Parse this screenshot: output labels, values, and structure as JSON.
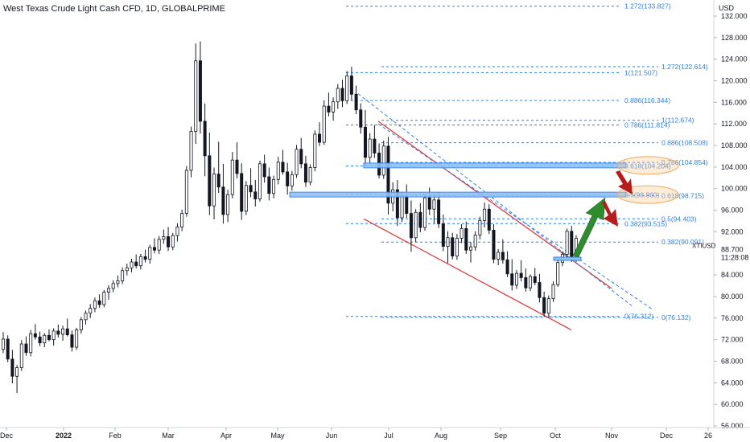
{
  "chart_data": {
    "type": "candlestick",
    "title": "West Texas Crude Light Cash CFD, 1D, GLOBALPRIME",
    "currency": "USD",
    "symbol": "XTIUSD",
    "last_price": "88.700",
    "countdown": "11:28:08",
    "y_axis": {
      "range": [
        56,
        134
      ],
      "ticks": [
        "132.000",
        "128.000",
        "124.000",
        "120.000",
        "116.000",
        "112.000",
        "108.000",
        "104.000",
        "100.000",
        "96.000",
        "92.000",
        "84.000",
        "80.000",
        "76.000",
        "72.000",
        "68.000",
        "64.000",
        "60.000",
        "56.000"
      ]
    },
    "x_axis": {
      "labels": [
        "Dec",
        "2022",
        "Feb",
        "Mar",
        "Apr",
        "May",
        "Jun",
        "Jul",
        "Aug",
        "Sep",
        "Oct",
        "Nov",
        "Dec",
        "26"
      ]
    },
    "fib_set_1": {
      "levels": [
        {
          "label": "1.272(133.827)",
          "value": 133.827
        },
        {
          "label": "1(121.507)",
          "value": 121.507
        },
        {
          "label": "0.886(116.344)",
          "value": 116.344
        },
        {
          "label": "0.786(111.814)",
          "value": 111.814
        },
        {
          "label": "0.618(104.204)",
          "value": 104.204
        },
        {
          "label": "0.5(98.860)",
          "value": 98.86
        },
        {
          "label": "0.382(93.515)",
          "value": 93.515
        },
        {
          "label": "0(76.312)",
          "value": 76.312
        }
      ]
    },
    "fib_set_2": {
      "levels": [
        {
          "label": "1.272(122.614)",
          "value": 122.614
        },
        {
          "label": "1(112.674)",
          "value": 112.674
        },
        {
          "label": "0.886(108.508)",
          "value": 108.508
        },
        {
          "label": "0.786(104.854)",
          "value": 104.854
        },
        {
          "label": "0.618(98.715)",
          "value": 98.715
        },
        {
          "label": "0.5(94.403)",
          "value": 94.403
        },
        {
          "label": "0.382(90.091)",
          "value": 90.091
        },
        {
          "label": "0(76.132)",
          "value": 76.132
        }
      ]
    },
    "resistance_zones": [
      104.3,
      98.9
    ],
    "ohlc": [
      [
        70.2,
        73.4,
        69.5,
        72.1
      ],
      [
        72.1,
        72.8,
        67.8,
        68.4
      ],
      [
        68.4,
        70.1,
        63.9,
        65.2
      ],
      [
        65.2,
        67.3,
        62.1,
        66.8
      ],
      [
        66.8,
        71.9,
        66.2,
        71.2
      ],
      [
        71.2,
        72.6,
        69.0,
        69.6
      ],
      [
        69.6,
        73.8,
        68.9,
        73.1
      ],
      [
        73.1,
        74.9,
        72.0,
        72.5
      ],
      [
        72.5,
        73.5,
        70.8,
        71.4
      ],
      [
        71.4,
        73.2,
        70.6,
        72.8
      ],
      [
        72.8,
        73.9,
        71.7,
        72.0
      ],
      [
        72.0,
        74.1,
        70.9,
        73.6
      ],
      [
        73.6,
        74.8,
        72.4,
        73.0
      ],
      [
        73.0,
        74.6,
        71.8,
        74.0
      ],
      [
        74.0,
        75.9,
        72.6,
        72.9
      ],
      [
        72.9,
        73.7,
        69.8,
        70.6
      ],
      [
        70.6,
        74.2,
        70.1,
        73.8
      ],
      [
        73.8,
        76.2,
        73.1,
        75.7
      ],
      [
        75.7,
        77.4,
        74.8,
        76.9
      ],
      [
        76.9,
        78.6,
        76.0,
        77.8
      ],
      [
        77.8,
        79.8,
        77.1,
        79.2
      ],
      [
        79.2,
        80.4,
        77.9,
        78.5
      ],
      [
        78.5,
        81.2,
        78.0,
        80.8
      ],
      [
        80.8,
        82.1,
        79.4,
        81.5
      ],
      [
        81.5,
        83.0,
        80.8,
        82.4
      ],
      [
        82.4,
        83.9,
        81.7,
        82.9
      ],
      [
        82.9,
        85.4,
        82.3,
        84.8
      ],
      [
        84.8,
        86.1,
        83.9,
        85.3
      ],
      [
        85.3,
        87.0,
        84.5,
        86.4
      ],
      [
        86.4,
        87.8,
        85.2,
        85.7
      ],
      [
        85.7,
        87.9,
        85.0,
        87.4
      ],
      [
        87.4,
        88.7,
        86.3,
        86.9
      ],
      [
        86.9,
        89.6,
        86.1,
        89.1
      ],
      [
        89.1,
        90.8,
        88.0,
        88.6
      ],
      [
        88.6,
        91.2,
        87.9,
        90.6
      ],
      [
        90.6,
        92.4,
        89.8,
        91.1
      ],
      [
        91.1,
        92.9,
        88.4,
        89.2
      ],
      [
        89.2,
        91.8,
        88.6,
        91.3
      ],
      [
        91.3,
        93.6,
        90.2,
        92.9
      ],
      [
        92.9,
        96.1,
        92.1,
        95.4
      ],
      [
        95.4,
        104.2,
        94.8,
        103.4
      ],
      [
        103.4,
        111.5,
        102.1,
        110.6
      ],
      [
        110.6,
        126.9,
        108.3,
        123.7
      ],
      [
        123.7,
        127.3,
        110.2,
        112.5
      ],
      [
        112.5,
        115.8,
        102.3,
        106.1
      ],
      [
        106.1,
        110.4,
        95.1,
        96.8
      ],
      [
        96.8,
        103.9,
        94.3,
        102.7
      ],
      [
        102.7,
        108.7,
        99.2,
        100.3
      ],
      [
        100.3,
        104.6,
        93.5,
        95.2
      ],
      [
        95.2,
        99.8,
        93.8,
        98.9
      ],
      [
        98.9,
        106.8,
        98.2,
        105.3
      ],
      [
        105.3,
        108.6,
        101.9,
        102.8
      ],
      [
        102.8,
        104.7,
        94.2,
        95.8
      ],
      [
        95.8,
        101.4,
        95.1,
        100.6
      ],
      [
        100.6,
        103.8,
        98.4,
        99.4
      ],
      [
        99.4,
        101.6,
        96.7,
        98.1
      ],
      [
        98.1,
        105.2,
        97.6,
        104.6
      ],
      [
        104.6,
        106.3,
        101.1,
        102.2
      ],
      [
        102.2,
        103.9,
        97.8,
        99.1
      ],
      [
        99.1,
        102.4,
        98.2,
        101.7
      ],
      [
        101.7,
        105.9,
        100.8,
        104.9
      ],
      [
        104.9,
        107.2,
        102.6,
        103.1
      ],
      [
        103.1,
        104.8,
        98.9,
        100.5
      ],
      [
        100.5,
        103.3,
        99.6,
        102.6
      ],
      [
        102.6,
        108.1,
        102.0,
        107.3
      ],
      [
        107.3,
        109.4,
        103.8,
        104.6
      ],
      [
        104.6,
        106.1,
        100.3,
        101.2
      ],
      [
        101.2,
        104.5,
        100.6,
        103.9
      ],
      [
        103.9,
        110.8,
        103.2,
        110.1
      ],
      [
        110.1,
        112.3,
        107.9,
        108.6
      ],
      [
        108.6,
        116.4,
        108.1,
        115.3
      ],
      [
        115.3,
        117.8,
        113.4,
        114.2
      ],
      [
        114.2,
        116.9,
        112.6,
        116.1
      ],
      [
        116.1,
        119.4,
        114.8,
        118.6
      ],
      [
        118.6,
        120.2,
        115.1,
        116.3
      ],
      [
        116.3,
        121.8,
        115.7,
        120.9
      ],
      [
        120.9,
        122.6,
        116.4,
        117.5
      ],
      [
        117.5,
        119.1,
        113.8,
        114.6
      ],
      [
        114.6,
        115.8,
        110.2,
        111.4
      ],
      [
        111.4,
        114.6,
        104.1,
        105.8
      ],
      [
        105.8,
        110.3,
        104.6,
        109.2
      ],
      [
        109.2,
        111.8,
        105.7,
        106.6
      ],
      [
        106.6,
        108.4,
        101.9,
        102.5
      ],
      [
        102.5,
        108.9,
        101.8,
        107.9
      ],
      [
        107.9,
        109.6,
        95.2,
        97.3
      ],
      [
        97.3,
        101.2,
        95.8,
        99.8
      ],
      [
        99.8,
        101.6,
        93.1,
        94.6
      ],
      [
        94.6,
        99.4,
        93.8,
        98.7
      ],
      [
        98.7,
        100.8,
        94.6,
        95.4
      ],
      [
        95.4,
        97.8,
        88.3,
        90.9
      ],
      [
        90.9,
        96.2,
        90.1,
        95.6
      ],
      [
        95.6,
        97.3,
        91.9,
        92.8
      ],
      [
        92.8,
        99.1,
        92.2,
        98.3
      ],
      [
        98.3,
        100.2,
        95.1,
        96.2
      ],
      [
        96.2,
        98.8,
        93.6,
        97.9
      ],
      [
        97.9,
        99.4,
        92.7,
        93.5
      ],
      [
        93.5,
        95.2,
        88.4,
        89.3
      ],
      [
        89.3,
        92.1,
        86.2,
        90.9
      ],
      [
        90.9,
        91.8,
        86.9,
        87.5
      ],
      [
        87.5,
        91.6,
        86.8,
        90.8
      ],
      [
        90.8,
        93.4,
        89.9,
        92.6
      ],
      [
        92.6,
        93.9,
        87.9,
        88.6
      ],
      [
        88.6,
        90.1,
        86.3,
        89.2
      ],
      [
        89.2,
        92.1,
        88.5,
        91.4
      ],
      [
        91.4,
        94.8,
        90.6,
        94.1
      ],
      [
        94.1,
        97.4,
        92.8,
        96.2
      ],
      [
        96.2,
        97.1,
        91.6,
        92.3
      ],
      [
        92.3,
        93.4,
        86.2,
        86.9
      ],
      [
        86.9,
        88.8,
        85.8,
        88.2
      ],
      [
        88.2,
        90.6,
        86.1,
        86.8
      ],
      [
        86.8,
        88.4,
        83.6,
        84.2
      ],
      [
        84.2,
        86.9,
        81.1,
        82.1
      ],
      [
        82.1,
        84.9,
        81.4,
        84.3
      ],
      [
        84.3,
        86.7,
        82.8,
        83.5
      ],
      [
        83.5,
        85.2,
        80.9,
        81.6
      ],
      [
        81.6,
        84.1,
        81.0,
        83.7
      ],
      [
        83.7,
        85.3,
        82.1,
        82.6
      ],
      [
        82.6,
        84.2,
        78.9,
        79.8
      ],
      [
        79.8,
        80.9,
        76.3,
        76.9
      ],
      [
        76.9,
        80.2,
        76.1,
        79.6
      ],
      [
        79.6,
        82.8,
        79.0,
        82.2
      ],
      [
        82.2,
        86.9,
        81.8,
        86.3
      ],
      [
        86.3,
        88.4,
        85.6,
        87.8
      ],
      [
        87.8,
        92.6,
        87.2,
        92.1
      ],
      [
        92.1,
        93.1,
        86.4,
        87.1
      ],
      [
        87.1,
        91.4,
        86.4,
        90.8
      ]
    ]
  }
}
